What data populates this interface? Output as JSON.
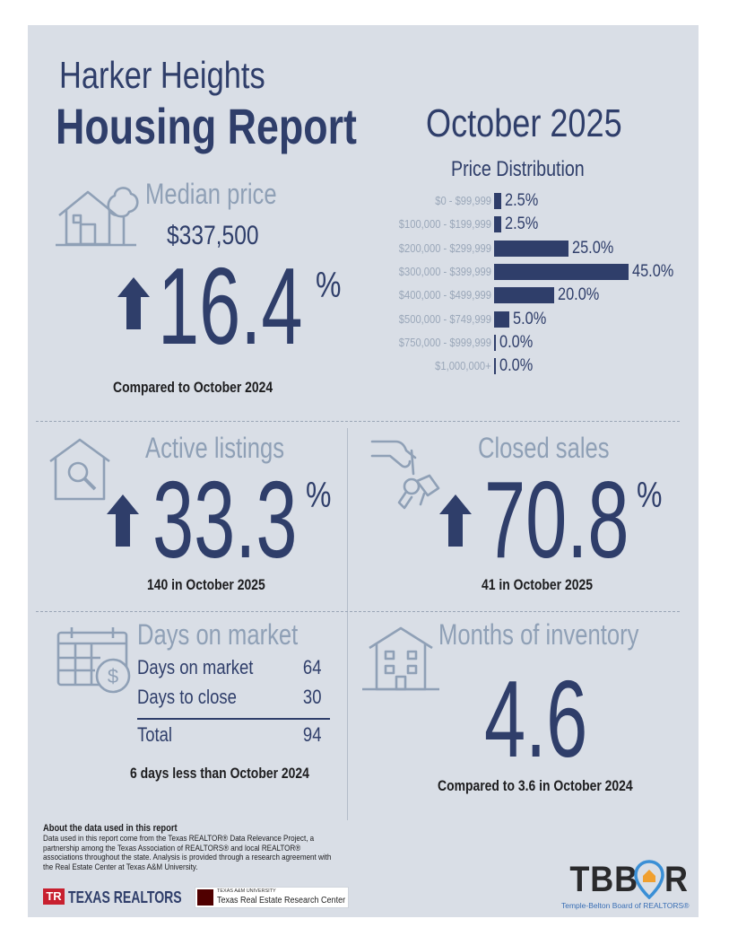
{
  "header": {
    "city": "Harker Heights",
    "title": "Housing Report",
    "month": "October 2025"
  },
  "price_distribution": {
    "title": "Price Distribution",
    "rows": [
      {
        "range": "$0 - $99,999",
        "value": "2.5%",
        "pct": 2.5
      },
      {
        "range": "$100,000 - $199,999",
        "value": "2.5%",
        "pct": 2.5
      },
      {
        "range": "$200,000 - $299,999",
        "value": "25.0%",
        "pct": 25.0
      },
      {
        "range": "$300,000 - $399,999",
        "value": "45.0%",
        "pct": 45.0
      },
      {
        "range": "$400,000 - $499,999",
        "value": "20.0%",
        "pct": 20.0
      },
      {
        "range": "$500,000 - $749,999",
        "value": "5.0%",
        "pct": 5.0
      },
      {
        "range": "$750,000 - $999,999",
        "value": "0.0%",
        "pct": 0.0
      },
      {
        "range": "$1,000,000+",
        "value": "0.0%",
        "pct": 0.0
      }
    ]
  },
  "median": {
    "title": "Median price",
    "price": "$337,500",
    "change": "16.4",
    "unit": "%",
    "caption": "Compared to October 2024"
  },
  "active": {
    "title": "Active listings",
    "change": "33.3",
    "unit": "%",
    "caption": "140 in October 2025"
  },
  "closed": {
    "title": "Closed sales",
    "change": "70.8",
    "unit": "%",
    "caption": "41 in October 2025"
  },
  "days": {
    "title": "Days on market",
    "rows": [
      {
        "label": "Days on market",
        "value": "64"
      },
      {
        "label": "Days to close",
        "value": "30"
      }
    ],
    "total_label": "Total",
    "total_value": "94",
    "caption": "6 days less than October 2024"
  },
  "inventory": {
    "title": "Months of inventory",
    "value": "4.6",
    "caption": "Compared to 3.6 in October 2024"
  },
  "about": {
    "heading": "About the data used in this report",
    "body": "Data used in this report come from the Texas REALTOR® Data Relevance Project, a partnership among the Texas Association of REALTORS® and local REALTOR® associations throughout the state. Analysis is provided through a research agreement with the Real Estate Center at Texas A&M University."
  },
  "logos": {
    "texas_realtors": "TEXAS REALTORS",
    "tamu_small": "TEXAS A&M UNIVERSITY",
    "tamu_center": "Texas Real Estate Research Center",
    "tbbor": "TBBOR",
    "tbbor_sub": "Temple-Belton Board of REALTORS®"
  },
  "colors": {
    "navy": "#2f3e6a",
    "steel": "#8fa0b6",
    "panel": "#d9dee6"
  },
  "icons": [
    "house-tree-icon",
    "house-search-icon",
    "hand-keys-icon",
    "calendar-dollar-icon",
    "building-icon",
    "arrow-up-icon"
  ]
}
